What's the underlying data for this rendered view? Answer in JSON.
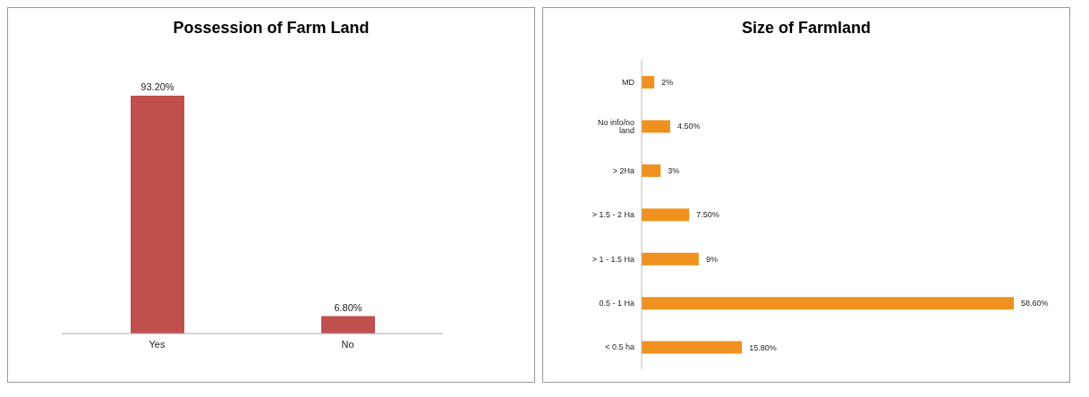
{
  "chart_data": [
    {
      "type": "bar",
      "title": "Possession of Farm Land",
      "categories": [
        "Yes",
        "No"
      ],
      "values": [
        93.2,
        6.8
      ],
      "value_labels": [
        "93.20%",
        "6.80%"
      ],
      "color": "#c0504d"
    },
    {
      "type": "bar",
      "orientation": "horizontal",
      "title": "Size of Farmland",
      "categories": [
        "MD",
        "No info/no land",
        "> 2Ha",
        "> 1.5 - 2 Ha",
        "> 1 - 1.5 Ha",
        "0.5 - 1 Ha",
        "< 0.5 ha"
      ],
      "values": [
        2,
        4.5,
        3,
        7.5,
        9,
        58.6,
        15.8
      ],
      "value_labels": [
        "2%",
        "4.50%",
        "3%",
        "7.50%",
        "9%",
        "58.60%",
        "15.80%"
      ],
      "color": "#f0901e"
    }
  ]
}
